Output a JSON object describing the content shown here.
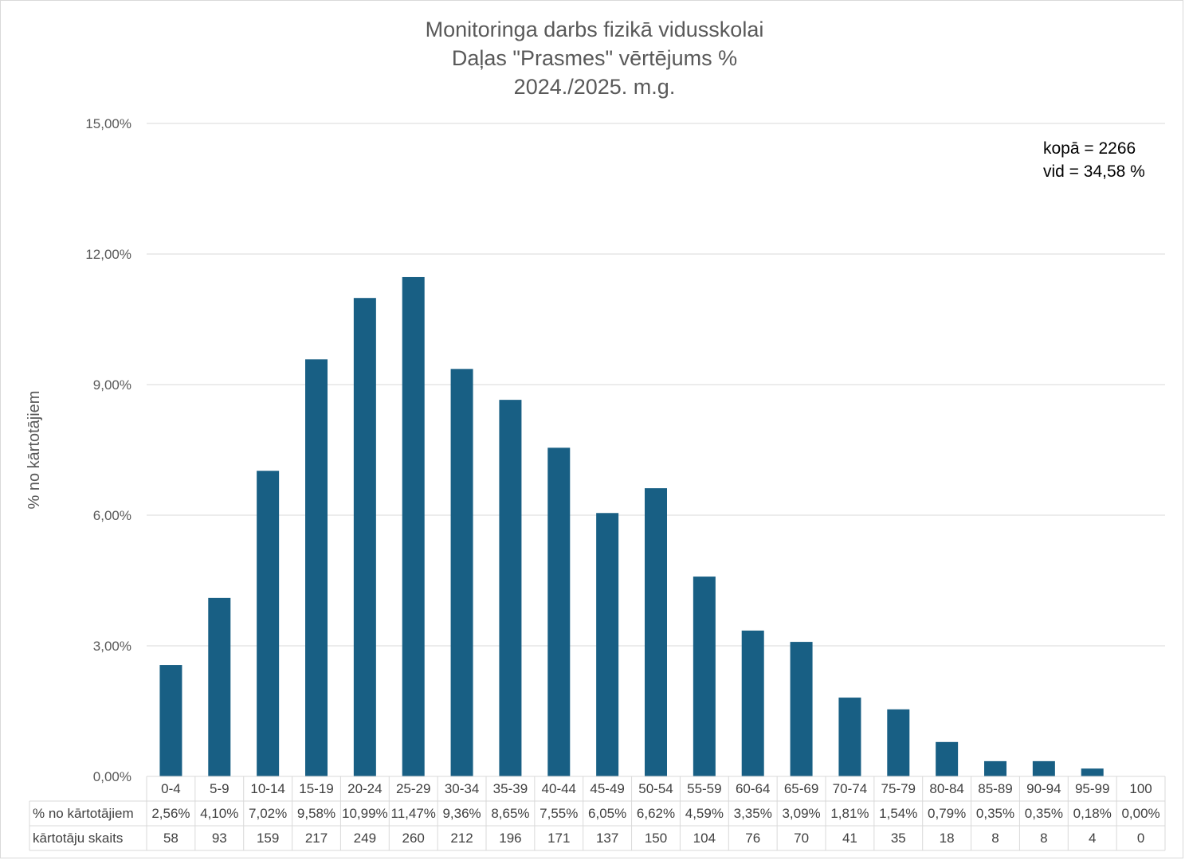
{
  "chart_data": {
    "type": "bar",
    "title": [
      "Monitoringa darbs fizikā vidusskolai",
      "Daļas \"Prasmes\" vērtējums %",
      "2024./2025. m.g."
    ],
    "ylabel": "% no kārtotājiem",
    "ylim": [
      0,
      15
    ],
    "yticks": [
      "0,00%",
      "3,00%",
      "6,00%",
      "9,00%",
      "12,00%",
      "15,00%"
    ],
    "ytick_values": [
      0,
      3,
      6,
      9,
      12,
      15
    ],
    "grid": true,
    "bar_color": "#185f84",
    "categories": [
      "0-4",
      "5-9",
      "10-14",
      "15-19",
      "20-24",
      "25-29",
      "30-34",
      "35-39",
      "40-44",
      "45-49",
      "50-54",
      "55-59",
      "60-64",
      "65-69",
      "70-74",
      "75-79",
      "80-84",
      "85-89",
      "90-94",
      "95-99",
      "100"
    ],
    "values": [
      2.56,
      4.1,
      7.02,
      9.58,
      10.99,
      11.47,
      9.36,
      8.65,
      7.55,
      6.05,
      6.62,
      4.59,
      3.35,
      3.09,
      1.81,
      1.54,
      0.79,
      0.35,
      0.35,
      0.18,
      0.0
    ],
    "table": {
      "rows": [
        {
          "label": "% no kārtotājiem",
          "cells": [
            "2,56%",
            "4,10%",
            "7,02%",
            "9,58%",
            "10,99%",
            "11,47%",
            "9,36%",
            "8,65%",
            "7,55%",
            "6,05%",
            "6,62%",
            "4,59%",
            "3,35%",
            "3,09%",
            "1,81%",
            "1,54%",
            "0,79%",
            "0,35%",
            "0,35%",
            "0,18%",
            "0,00%"
          ]
        },
        {
          "label": "kārtotāju skaits",
          "cells": [
            "58",
            "93",
            "159",
            "217",
            "249",
            "260",
            "212",
            "196",
            "171",
            "137",
            "150",
            "104",
            "76",
            "70",
            "41",
            "35",
            "18",
            "8",
            "8",
            "4",
            "0"
          ]
        }
      ]
    },
    "annotations": [
      "kopā = 2266",
      "vid = 34,58 %"
    ]
  }
}
